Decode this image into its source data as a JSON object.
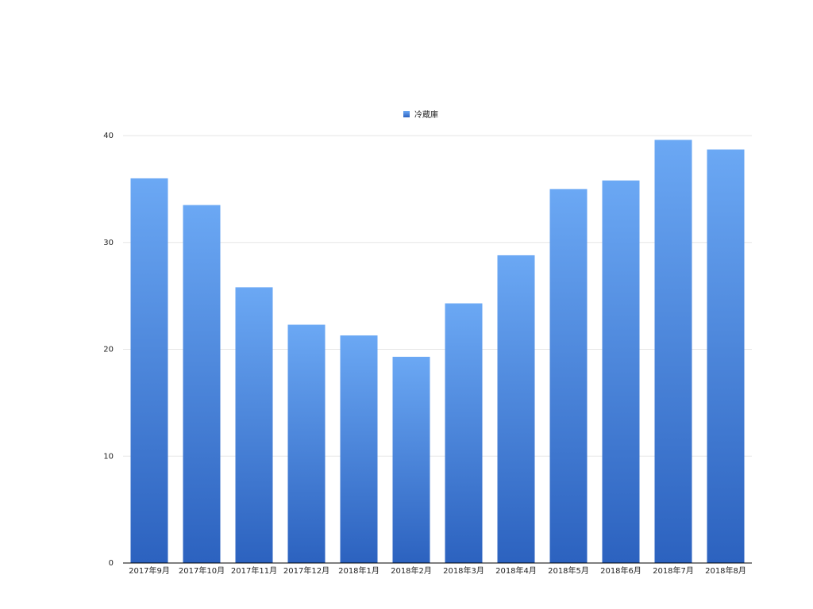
{
  "chart_data": {
    "type": "bar",
    "categories": [
      "2017年9月",
      "2017年10月",
      "2017年11月",
      "2017年12月",
      "2018年1月",
      "2018年2月",
      "2018年3月",
      "2018年4月",
      "2018年5月",
      "2018年6月",
      "2018年7月",
      "2018年8月"
    ],
    "series": [
      {
        "name": "冷蔵庫",
        "color": "#2c62bf",
        "color_top": "#6ba8f4",
        "values": [
          36.0,
          33.5,
          25.8,
          22.3,
          21.3,
          19.3,
          24.3,
          28.8,
          35.0,
          35.8,
          39.6,
          38.7
        ]
      }
    ],
    "ylim": [
      0,
      40
    ],
    "yticks": [
      0,
      10,
      20,
      30,
      40
    ],
    "grid": true,
    "legend": "top"
  }
}
